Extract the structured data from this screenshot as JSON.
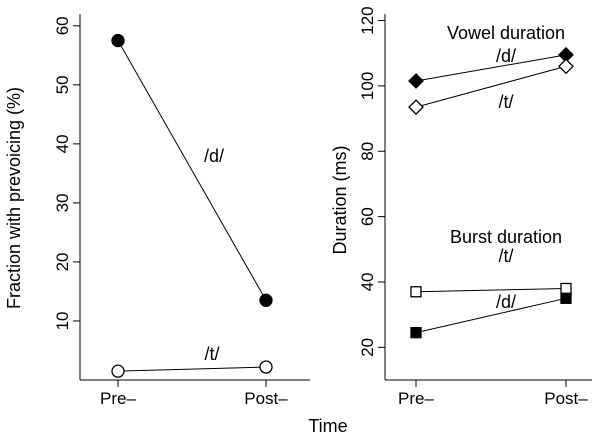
{
  "xlabel": "Time",
  "chart_data": [
    {
      "type": "line",
      "categories": [
        "Pre–",
        "Post–"
      ],
      "ylabel": "Fraction with prevoicing (%)",
      "ylim": [
        0,
        62
      ],
      "yticks": [
        10,
        20,
        30,
        40,
        50,
        60
      ],
      "series": [
        {
          "name": "/d/",
          "values": [
            57.5,
            13.5
          ],
          "marker": "circle",
          "filled": true
        },
        {
          "name": "/t/",
          "values": [
            1.5,
            2.2
          ],
          "marker": "circle",
          "filled": false
        }
      ],
      "annotations": []
    },
    {
      "type": "line",
      "categories": [
        "Pre–",
        "Post–"
      ],
      "ylabel": "Duration (ms)",
      "ylim": [
        10,
        122
      ],
      "yticks": [
        20,
        40,
        60,
        80,
        100,
        120
      ],
      "series": [
        {
          "name": "/d/",
          "group": "Vowel duration",
          "values": [
            101.5,
            109.5
          ],
          "marker": "diamond",
          "filled": true
        },
        {
          "name": "/t/",
          "group": "Vowel duration",
          "values": [
            93.5,
            106
          ],
          "marker": "diamond",
          "filled": false
        },
        {
          "name": "/t/",
          "group": "Burst duration",
          "values": [
            37,
            38
          ],
          "marker": "square",
          "filled": false
        },
        {
          "name": "/d/",
          "group": "Burst duration",
          "values": [
            24.5,
            35
          ],
          "marker": "square",
          "filled": true
        }
      ],
      "annotations": [
        "Vowel duration",
        "Burst duration"
      ]
    }
  ]
}
